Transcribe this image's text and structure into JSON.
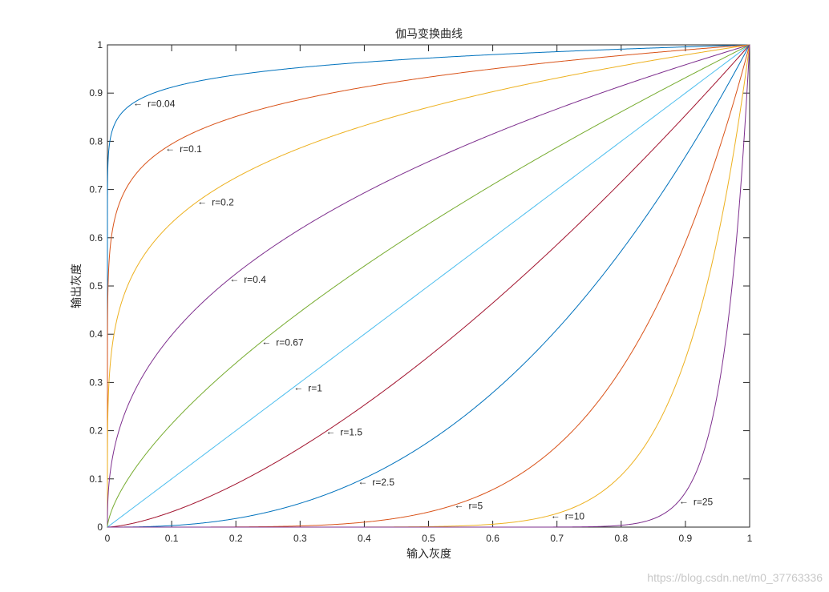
{
  "chart_data": {
    "type": "line",
    "title": "伽马变换曲线",
    "xlabel": "输入灰度",
    "ylabel": "输出灰度",
    "xlim": [
      0,
      1
    ],
    "ylim": [
      0,
      1
    ],
    "xticks": [
      "0",
      "0.1",
      "0.2",
      "0.3",
      "0.4",
      "0.5",
      "0.6",
      "0.7",
      "0.8",
      "0.9",
      "1"
    ],
    "yticks": [
      "0",
      "0.1",
      "0.2",
      "0.3",
      "0.4",
      "0.5",
      "0.6",
      "0.7",
      "0.8",
      "0.9",
      "1"
    ],
    "grid": false,
    "box": true,
    "series": [
      {
        "gamma": 0.04,
        "color": "#0072BD",
        "label": "r=0.04",
        "label_x": 0.04
      },
      {
        "gamma": 0.1,
        "color": "#D95319",
        "label": "r=0.1",
        "label_x": 0.09
      },
      {
        "gamma": 0.2,
        "color": "#EDB120",
        "label": "r=0.2",
        "label_x": 0.14
      },
      {
        "gamma": 0.4,
        "color": "#7E2F8E",
        "label": "r=0.4",
        "label_x": 0.19
      },
      {
        "gamma": 0.67,
        "color": "#77AC30",
        "label": "r=0.67",
        "label_x": 0.24
      },
      {
        "gamma": 1,
        "color": "#4DBEEE",
        "label": "r=1",
        "label_x": 0.29
      },
      {
        "gamma": 1.5,
        "color": "#A2142F",
        "label": "r=1.5",
        "label_x": 0.34
      },
      {
        "gamma": 2.5,
        "color": "#0072BD",
        "label": "r=2.5",
        "label_x": 0.39
      },
      {
        "gamma": 5,
        "color": "#D95319",
        "label": "r=5",
        "label_x": 0.54
      },
      {
        "gamma": 10,
        "color": "#EDB120",
        "label": "r=10",
        "label_x": 0.69
      },
      {
        "gamma": 25,
        "color": "#7E2F8E",
        "label": "r=25",
        "label_x": 0.89
      }
    ]
  },
  "watermark": "https://blog.csdn.net/m0_37763336"
}
